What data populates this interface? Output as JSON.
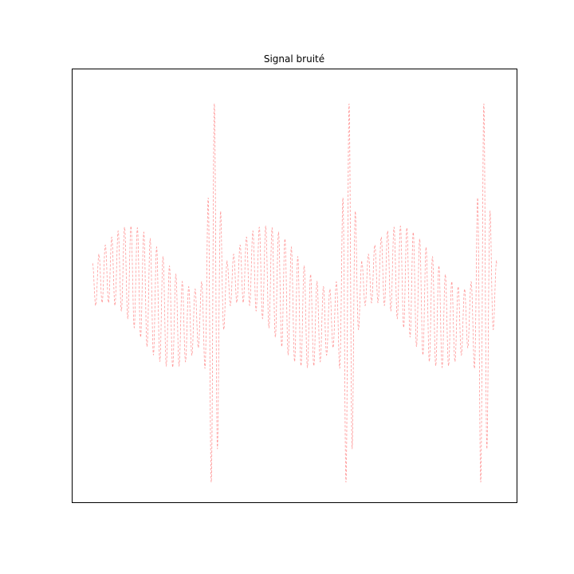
{
  "chart_data": {
    "type": "line",
    "title": "Signal bruité",
    "xlabel": "",
    "ylabel": "",
    "axes_visible": false,
    "grid": false,
    "line_style": "dashed",
    "line_color": "#ff0000",
    "line_opacity": 0.4,
    "series": [
      {
        "x": [
          0,
          1
        ],
        "y_range": [
          -1,
          1
        ],
        "period_fraction": 0.3333,
        "carrier_frequency": 63,
        "description_visible_shape": "noisy oscillating signal repeating three times"
      }
    ]
  }
}
